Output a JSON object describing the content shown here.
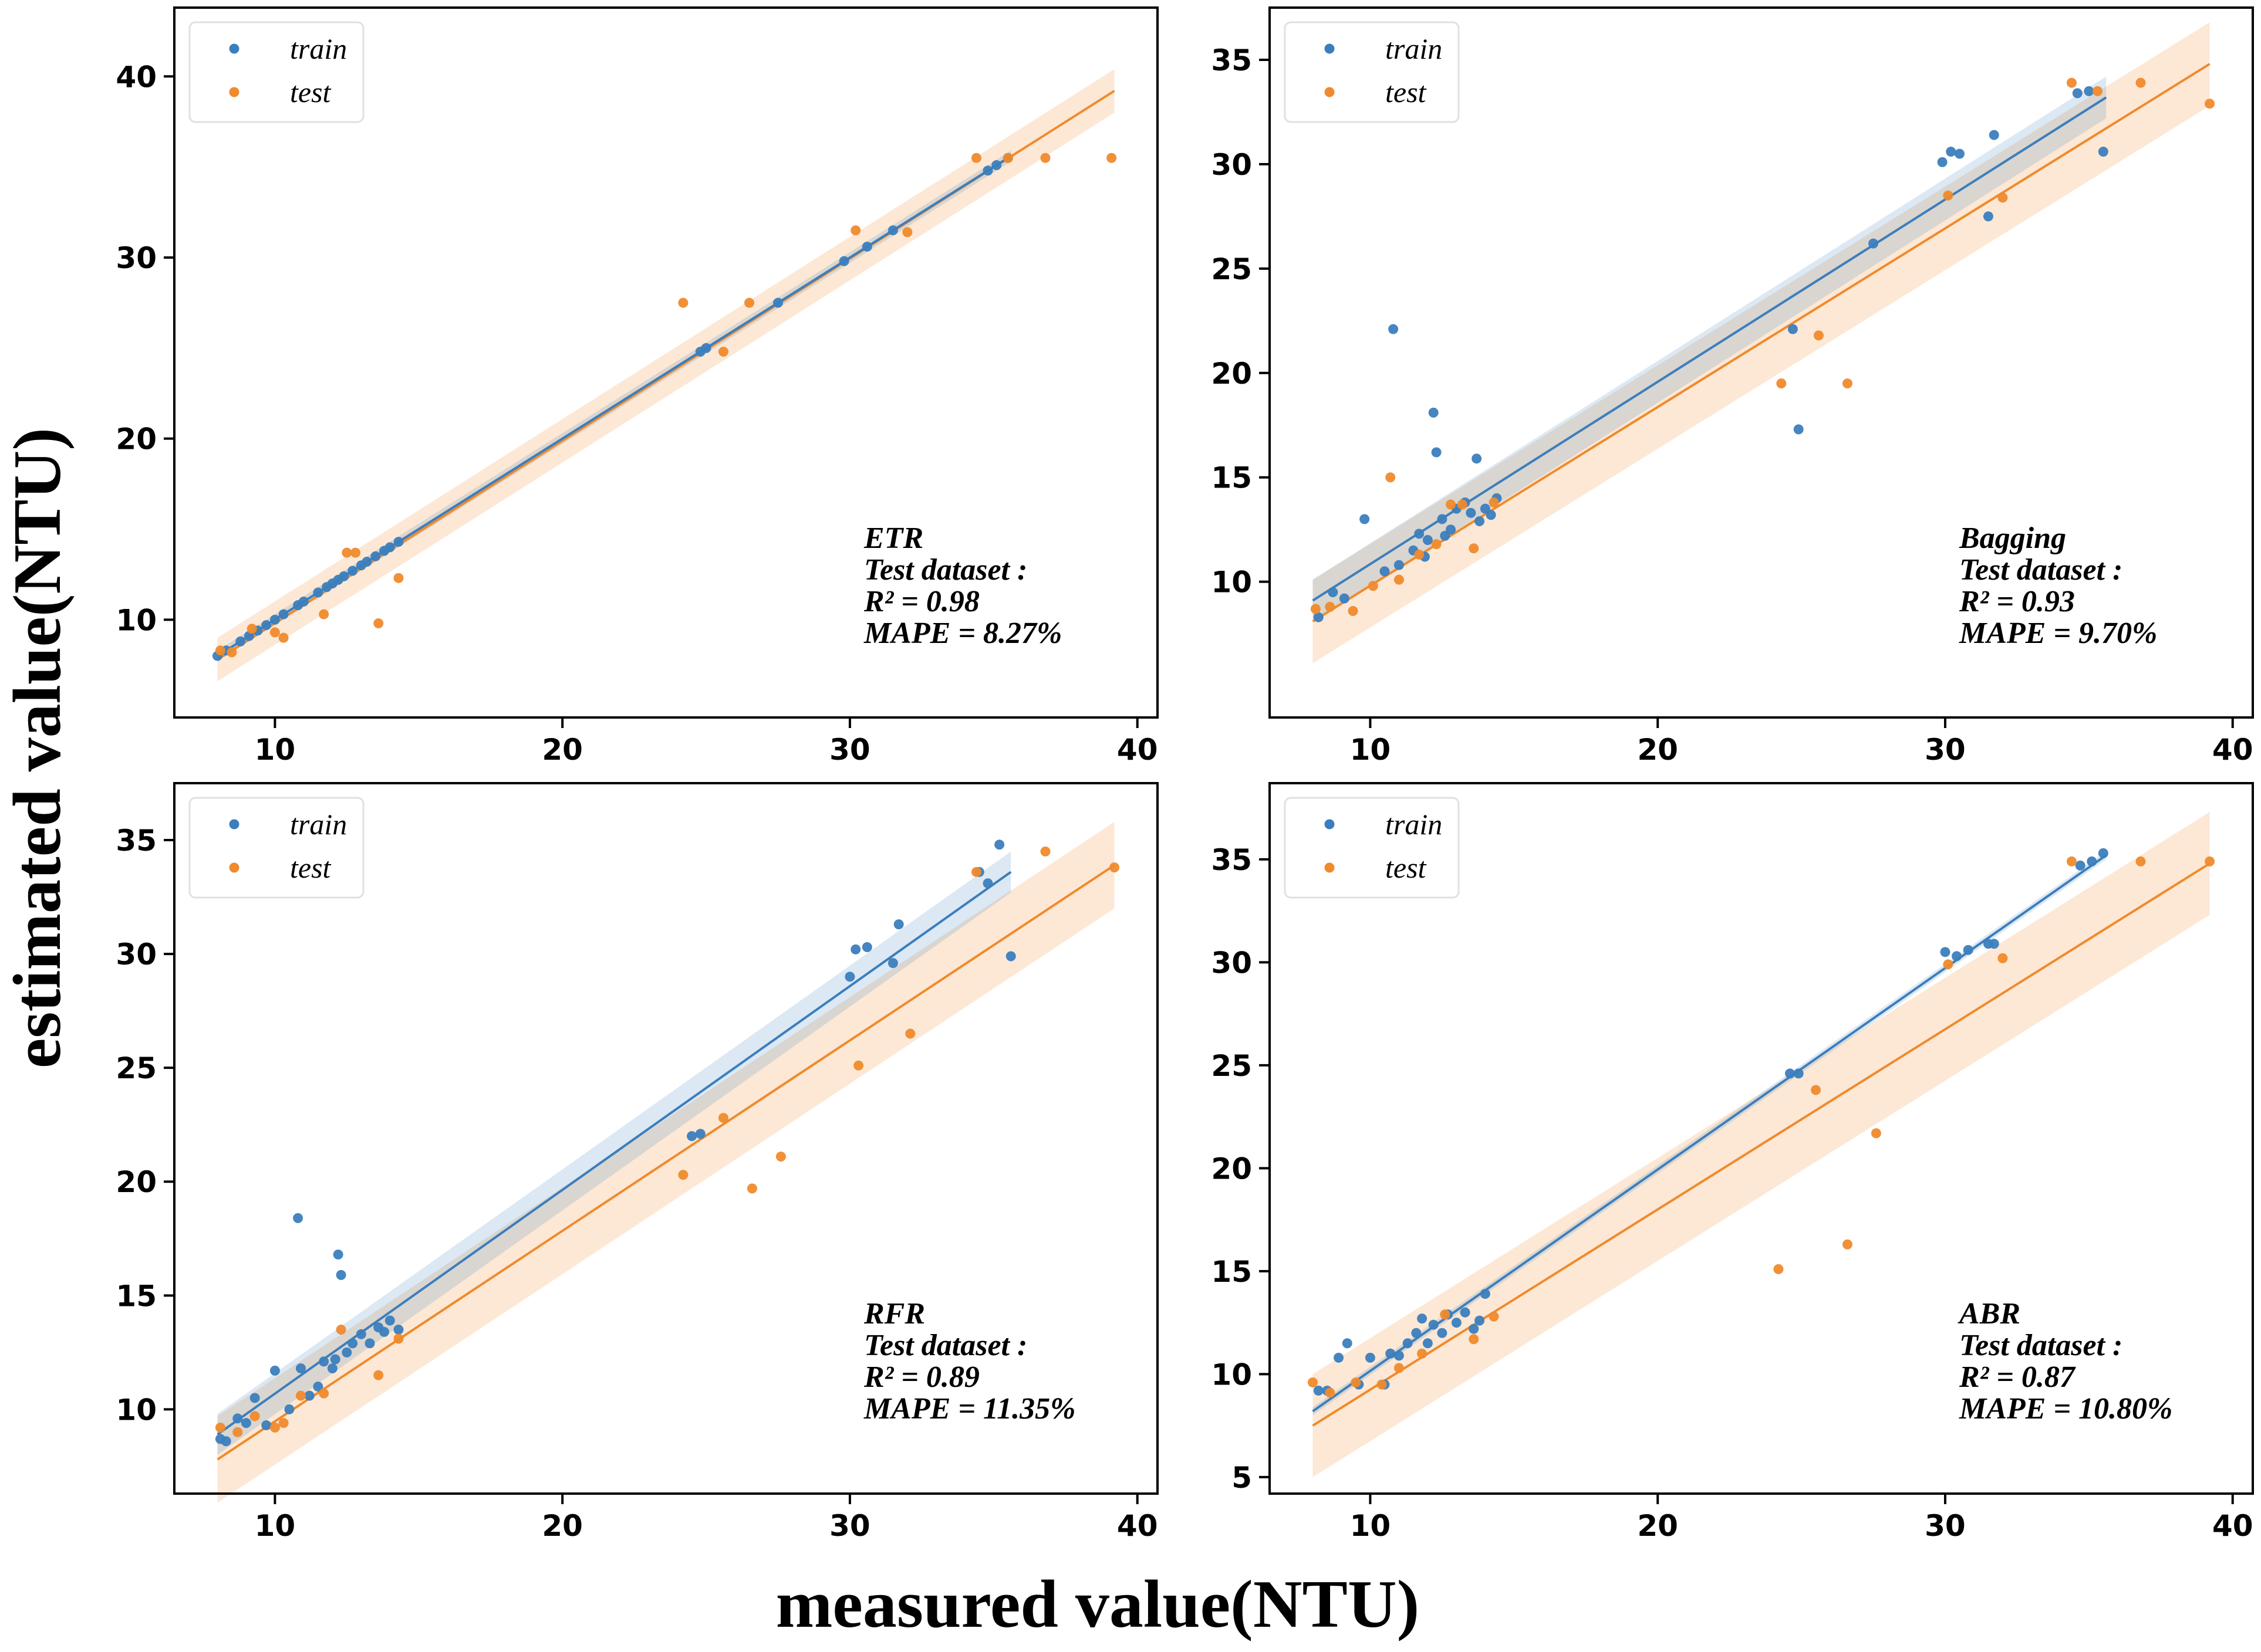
{
  "figure": {
    "xlabel": "measured value(NTU)",
    "ylabel": "estimated value(NTU)"
  },
  "colors": {
    "train": "#3b7ebd",
    "test": "#f08a2c"
  },
  "chart_data": [
    {
      "type": "scatter",
      "xlim": [
        6.5,
        40.7
      ],
      "ylim": [
        4.6,
        43.8
      ],
      "xticks": [
        10,
        20,
        30,
        40
      ],
      "yticks": [
        10,
        20,
        30,
        40
      ],
      "legend": {
        "position": "top-left",
        "entries": [
          "train",
          "test"
        ]
      },
      "annotation": [
        "ETR",
        "Test dataset :",
        "R² = 0.98",
        "MAPE = 8.27%"
      ],
      "fits": {
        "train": {
          "x": [
            8.0,
            35.6
          ],
          "y": [
            8.0,
            35.6
          ],
          "band": 0.3
        },
        "test": {
          "x": [
            8.0,
            39.2
          ],
          "y": [
            7.8,
            39.2
          ],
          "band": 1.2
        }
      },
      "series": [
        {
          "name": "train",
          "points": [
            [
              8.0,
              8.0
            ],
            [
              8.3,
              8.3
            ],
            [
              8.8,
              8.8
            ],
            [
              9.1,
              9.1
            ],
            [
              9.4,
              9.4
            ],
            [
              9.7,
              9.7
            ],
            [
              10.0,
              10.0
            ],
            [
              10.3,
              10.3
            ],
            [
              10.8,
              10.8
            ],
            [
              11.0,
              11.0
            ],
            [
              11.5,
              11.5
            ],
            [
              11.8,
              11.8
            ],
            [
              12.0,
              12.0
            ],
            [
              12.2,
              12.2
            ],
            [
              12.4,
              12.4
            ],
            [
              12.7,
              12.7
            ],
            [
              13.0,
              13.0
            ],
            [
              13.2,
              13.2
            ],
            [
              13.5,
              13.5
            ],
            [
              13.8,
              13.8
            ],
            [
              14.0,
              14.0
            ],
            [
              14.3,
              14.3
            ],
            [
              24.8,
              24.8
            ],
            [
              25.0,
              25.0
            ],
            [
              27.5,
              27.5
            ],
            [
              29.8,
              29.8
            ],
            [
              30.6,
              30.6
            ],
            [
              31.5,
              31.5
            ],
            [
              34.8,
              34.8
            ],
            [
              35.1,
              35.1
            ],
            [
              35.5,
              35.5
            ]
          ]
        },
        {
          "name": "test",
          "points": [
            [
              8.1,
              8.3
            ],
            [
              8.5,
              8.2
            ],
            [
              9.2,
              9.5
            ],
            [
              10.0,
              9.3
            ],
            [
              10.3,
              9.0
            ],
            [
              11.7,
              10.3
            ],
            [
              12.5,
              13.7
            ],
            [
              12.8,
              13.7
            ],
            [
              13.6,
              9.8
            ],
            [
              14.3,
              12.3
            ],
            [
              24.2,
              27.5
            ],
            [
              25.6,
              24.8
            ],
            [
              26.5,
              27.5
            ],
            [
              30.2,
              31.5
            ],
            [
              32.0,
              31.4
            ],
            [
              34.4,
              35.5
            ],
            [
              35.5,
              35.5
            ],
            [
              36.8,
              35.5
            ],
            [
              39.1,
              35.5
            ]
          ]
        }
      ]
    },
    {
      "type": "scatter",
      "xlim": [
        6.5,
        40.7
      ],
      "ylim": [
        3.5,
        37.5
      ],
      "xticks": [
        10,
        20,
        30,
        40
      ],
      "yticks": [
        10,
        15,
        20,
        25,
        30,
        35
      ],
      "legend": {
        "position": "top-left",
        "entries": [
          "train",
          "test"
        ]
      },
      "annotation": [
        "Bagging",
        "Test dataset :",
        "R² = 0.93",
        "MAPE = 9.70%"
      ],
      "fits": {
        "train": {
          "x": [
            8.0,
            35.6
          ],
          "y": [
            9.1,
            33.2
          ],
          "band": 1.0
        },
        "test": {
          "x": [
            8.0,
            39.2
          ],
          "y": [
            8.1,
            34.8
          ],
          "band": 2.0
        }
      },
      "series": [
        {
          "name": "train",
          "points": [
            [
              8.2,
              8.3
            ],
            [
              8.7,
              9.5
            ],
            [
              9.1,
              9.2
            ],
            [
              9.8,
              13.0
            ],
            [
              10.5,
              10.5
            ],
            [
              10.8,
              22.1
            ],
            [
              11.0,
              10.8
            ],
            [
              11.5,
              11.5
            ],
            [
              11.7,
              12.3
            ],
            [
              11.9,
              11.2
            ],
            [
              12.0,
              12.0
            ],
            [
              12.2,
              18.1
            ],
            [
              12.3,
              16.2
            ],
            [
              12.5,
              13.0
            ],
            [
              12.6,
              12.2
            ],
            [
              12.8,
              12.5
            ],
            [
              13.0,
              13.5
            ],
            [
              13.3,
              13.8
            ],
            [
              13.5,
              13.3
            ],
            [
              13.7,
              15.9
            ],
            [
              13.8,
              12.9
            ],
            [
              14.0,
              13.5
            ],
            [
              14.2,
              13.2
            ],
            [
              14.4,
              14.0
            ],
            [
              24.7,
              22.1
            ],
            [
              24.9,
              17.3
            ],
            [
              27.5,
              26.2
            ],
            [
              29.9,
              30.1
            ],
            [
              30.2,
              30.6
            ],
            [
              30.5,
              30.5
            ],
            [
              31.5,
              27.5
            ],
            [
              31.7,
              31.4
            ],
            [
              34.6,
              33.4
            ],
            [
              35.0,
              33.5
            ],
            [
              35.5,
              30.6
            ]
          ]
        },
        {
          "name": "test",
          "points": [
            [
              8.1,
              8.7
            ],
            [
              8.6,
              8.8
            ],
            [
              9.4,
              8.6
            ],
            [
              10.1,
              9.8
            ],
            [
              10.7,
              15.0
            ],
            [
              11.0,
              10.1
            ],
            [
              11.7,
              11.3
            ],
            [
              12.3,
              11.8
            ],
            [
              12.8,
              13.7
            ],
            [
              13.2,
              13.7
            ],
            [
              13.6,
              11.6
            ],
            [
              14.3,
              13.8
            ],
            [
              24.3,
              19.5
            ],
            [
              25.6,
              21.8
            ],
            [
              26.6,
              19.5
            ],
            [
              30.1,
              28.5
            ],
            [
              32.0,
              28.4
            ],
            [
              34.4,
              33.9
            ],
            [
              35.3,
              33.5
            ],
            [
              36.8,
              33.9
            ],
            [
              39.2,
              32.9
            ]
          ]
        }
      ]
    },
    {
      "type": "scatter",
      "xlim": [
        6.5,
        40.7
      ],
      "ylim": [
        6.3,
        37.5
      ],
      "xticks": [
        10,
        20,
        30,
        40
      ],
      "yticks": [
        10,
        15,
        20,
        25,
        30,
        35
      ],
      "legend": {
        "position": "top-left",
        "entries": [
          "train",
          "test"
        ]
      },
      "annotation": [
        "RFR",
        "Test dataset :",
        "R² = 0.89",
        "MAPE = 11.35%"
      ],
      "fits": {
        "train": {
          "x": [
            8.0,
            35.6
          ],
          "y": [
            8.9,
            33.6
          ],
          "band": 0.9
        },
        "test": {
          "x": [
            8.0,
            39.2
          ],
          "y": [
            7.8,
            33.9
          ],
          "band": 1.9
        }
      },
      "series": [
        {
          "name": "train",
          "points": [
            [
              8.1,
              8.7
            ],
            [
              8.3,
              8.6
            ],
            [
              8.7,
              9.6
            ],
            [
              9.0,
              9.4
            ],
            [
              9.3,
              10.5
            ],
            [
              9.7,
              9.3
            ],
            [
              10.0,
              11.7
            ],
            [
              10.5,
              10.0
            ],
            [
              10.8,
              18.4
            ],
            [
              10.9,
              11.8
            ],
            [
              11.2,
              10.6
            ],
            [
              11.5,
              11.0
            ],
            [
              11.7,
              12.1
            ],
            [
              12.0,
              11.8
            ],
            [
              12.1,
              12.2
            ],
            [
              12.2,
              16.8
            ],
            [
              12.3,
              15.9
            ],
            [
              12.5,
              12.5
            ],
            [
              12.7,
              12.9
            ],
            [
              13.0,
              13.3
            ],
            [
              13.3,
              12.9
            ],
            [
              13.6,
              13.6
            ],
            [
              13.8,
              13.4
            ],
            [
              14.0,
              13.9
            ],
            [
              14.3,
              13.5
            ],
            [
              24.5,
              22.0
            ],
            [
              24.8,
              22.1
            ],
            [
              30.0,
              29.0
            ],
            [
              30.2,
              30.2
            ],
            [
              30.6,
              30.3
            ],
            [
              31.5,
              29.6
            ],
            [
              31.7,
              31.3
            ],
            [
              34.5,
              33.6
            ],
            [
              34.8,
              33.1
            ],
            [
              35.2,
              34.8
            ],
            [
              35.6,
              29.9
            ]
          ]
        },
        {
          "name": "test",
          "points": [
            [
              8.1,
              9.2
            ],
            [
              8.7,
              9.0
            ],
            [
              9.3,
              9.7
            ],
            [
              10.0,
              9.2
            ],
            [
              10.3,
              9.4
            ],
            [
              10.9,
              10.6
            ],
            [
              11.7,
              10.7
            ],
            [
              12.3,
              13.5
            ],
            [
              13.6,
              11.5
            ],
            [
              14.3,
              13.1
            ],
            [
              24.2,
              20.3
            ],
            [
              25.6,
              22.8
            ],
            [
              26.6,
              19.7
            ],
            [
              27.6,
              21.1
            ],
            [
              30.3,
              25.1
            ],
            [
              32.1,
              26.5
            ],
            [
              34.4,
              33.6
            ],
            [
              36.8,
              34.5
            ],
            [
              39.2,
              33.8
            ]
          ]
        }
      ]
    },
    {
      "type": "scatter",
      "xlim": [
        6.5,
        40.7
      ],
      "ylim": [
        4.2,
        38.7
      ],
      "xticks": [
        10,
        20,
        30,
        40
      ],
      "yticks": [
        5,
        10,
        15,
        20,
        25,
        30,
        35
      ],
      "legend": {
        "position": "top-left",
        "entries": [
          "train",
          "test"
        ]
      },
      "annotation": [
        "ABR",
        "Test dataset :",
        "R² = 0.87",
        "MAPE = 10.80%"
      ],
      "fits": {
        "train": {
          "x": [
            8.0,
            35.6
          ],
          "y": [
            8.2,
            35.2
          ],
          "band": 0.2
        },
        "test": {
          "x": [
            8.0,
            39.2
          ],
          "y": [
            7.5,
            34.8
          ],
          "band": 2.5
        }
      },
      "series": [
        {
          "name": "train",
          "points": [
            [
              8.2,
              9.2
            ],
            [
              8.5,
              9.2
            ],
            [
              8.9,
              10.8
            ],
            [
              9.2,
              11.5
            ],
            [
              9.6,
              9.5
            ],
            [
              10.0,
              10.8
            ],
            [
              10.5,
              9.5
            ],
            [
              10.7,
              11.0
            ],
            [
              11.0,
              10.9
            ],
            [
              11.3,
              11.5
            ],
            [
              11.6,
              12.0
            ],
            [
              11.8,
              12.7
            ],
            [
              12.0,
              11.5
            ],
            [
              12.2,
              12.4
            ],
            [
              12.5,
              12.0
            ],
            [
              12.7,
              12.9
            ],
            [
              13.0,
              12.5
            ],
            [
              13.3,
              13.0
            ],
            [
              13.6,
              12.2
            ],
            [
              13.8,
              12.6
            ],
            [
              14.0,
              13.9
            ],
            [
              24.6,
              24.6
            ],
            [
              24.9,
              24.6
            ],
            [
              30.0,
              30.5
            ],
            [
              30.4,
              30.3
            ],
            [
              30.8,
              30.6
            ],
            [
              31.5,
              30.9
            ],
            [
              31.7,
              30.9
            ],
            [
              34.7,
              34.7
            ],
            [
              35.1,
              34.9
            ],
            [
              35.5,
              35.3
            ]
          ]
        },
        {
          "name": "test",
          "points": [
            [
              8.0,
              9.6
            ],
            [
              8.6,
              9.1
            ],
            [
              9.5,
              9.6
            ],
            [
              10.4,
              9.5
            ],
            [
              11.0,
              10.3
            ],
            [
              11.8,
              11.0
            ],
            [
              12.6,
              12.9
            ],
            [
              13.6,
              11.7
            ],
            [
              14.3,
              12.8
            ],
            [
              24.2,
              15.1
            ],
            [
              25.5,
              23.8
            ],
            [
              26.6,
              16.3
            ],
            [
              27.6,
              21.7
            ],
            [
              30.1,
              29.9
            ],
            [
              32.0,
              30.2
            ],
            [
              34.4,
              34.9
            ],
            [
              36.8,
              34.9
            ],
            [
              39.2,
              34.9
            ]
          ]
        }
      ]
    }
  ]
}
